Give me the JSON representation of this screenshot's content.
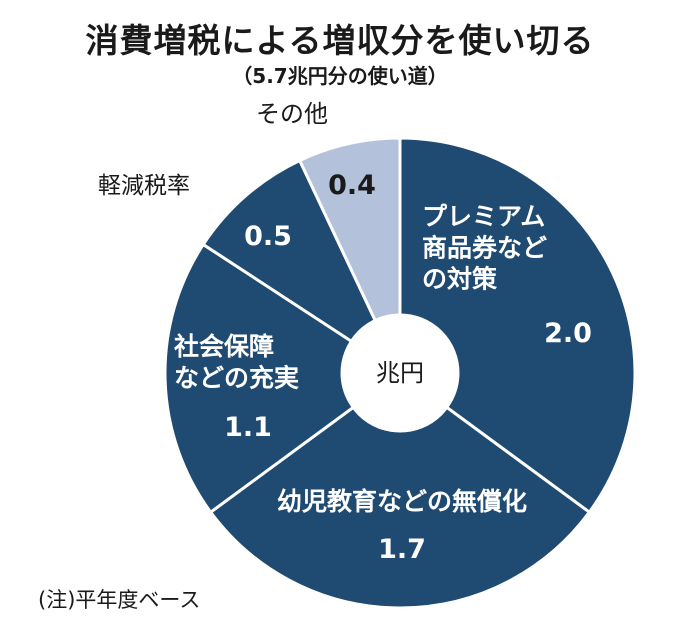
{
  "title": "消費増税による増収分を使い切る",
  "subtitle": "（5.7兆円分の使い道）",
  "note": "(注)平年度ベース",
  "colors": {
    "dark_slice": "#1f4a72",
    "light_slice": "#b3c2da",
    "separator": "#ffffff"
  },
  "chart_data": {
    "type": "pie",
    "donut": true,
    "center_label": "兆円",
    "total": 5.7,
    "slices": [
      {
        "label": "プレミアム商品券などの対策",
        "label_lines": [
          "プレミアム",
          "商品券など",
          "の対策"
        ],
        "value": 2.0,
        "value_text": "2.0",
        "color": "#1f4a72"
      },
      {
        "label": "幼児教育などの無償化",
        "label_lines": [
          "幼児教育などの無償化"
        ],
        "value": 1.7,
        "value_text": "1.7",
        "color": "#1f4a72"
      },
      {
        "label": "社会保障などの充実",
        "label_lines": [
          "社会保障",
          "などの充実"
        ],
        "value": 1.1,
        "value_text": "1.1",
        "color": "#1f4a72"
      },
      {
        "label": "軽減税率",
        "label_lines": [
          "軽減税率"
        ],
        "value": 0.5,
        "value_text": "0.5",
        "color": "#1f4a72"
      },
      {
        "label": "その他",
        "label_lines": [
          "その他"
        ],
        "value": 0.4,
        "value_text": "0.4",
        "color": "#b3c2da"
      }
    ]
  }
}
